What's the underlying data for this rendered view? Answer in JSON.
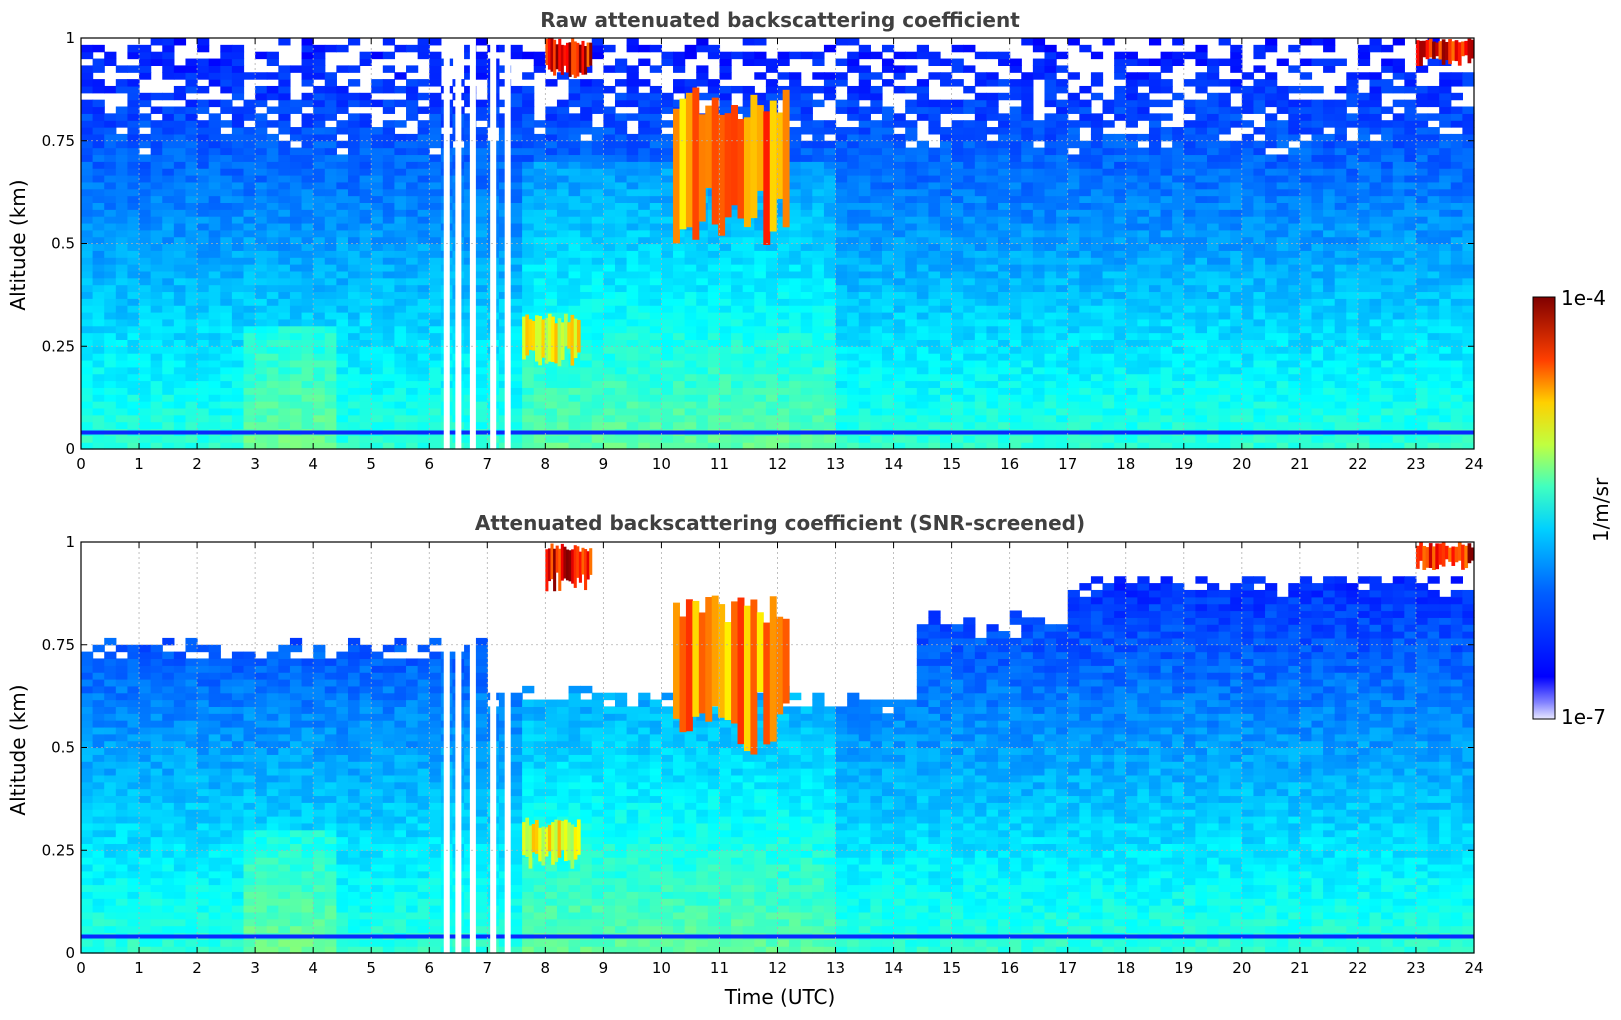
{
  "chart_data": [
    {
      "type": "heatmap",
      "title": "Raw attenuated backscattering coefficient",
      "xlabel": "",
      "ylabel": "Altitude (km)",
      "xlim": [
        0,
        24
      ],
      "ylim": [
        0,
        1
      ],
      "x_ticks": [
        "0",
        "1",
        "2",
        "3",
        "4",
        "5",
        "6",
        "7",
        "8",
        "9",
        "10",
        "11",
        "12",
        "13",
        "14",
        "15",
        "16",
        "17",
        "18",
        "19",
        "20",
        "21",
        "22",
        "23",
        "24"
      ],
      "y_ticks": [
        "0",
        "0.25",
        "0.5",
        "0.75",
        "1"
      ],
      "grid": true,
      "snr_screened": false,
      "clouds": [
        {
          "t0": 8.0,
          "t1": 8.8,
          "z0": 0.9,
          "z1": 1.0,
          "level": 1.0
        },
        {
          "t0": 10.2,
          "t1": 12.2,
          "z0": 0.48,
          "z1": 0.88,
          "level": 0.85
        },
        {
          "t0": 7.6,
          "t1": 8.6,
          "z0": 0.2,
          "z1": 0.33,
          "level": 0.7
        },
        {
          "t0": 23.0,
          "t1": 24.0,
          "z0": 0.93,
          "z1": 1.0,
          "level": 1.0
        }
      ],
      "missing_hours": [
        6.25,
        6.45,
        6.7,
        7.05,
        7.3
      ]
    },
    {
      "type": "heatmap",
      "title": "Attenuated backscattering coefficient (SNR-screened)",
      "xlabel": "Time (UTC)",
      "ylabel": "Altitude (km)",
      "xlim": [
        0,
        24
      ],
      "ylim": [
        0,
        1
      ],
      "x_ticks": [
        "0",
        "1",
        "2",
        "3",
        "4",
        "5",
        "6",
        "7",
        "8",
        "9",
        "10",
        "11",
        "12",
        "13",
        "14",
        "15",
        "16",
        "17",
        "18",
        "19",
        "20",
        "21",
        "22",
        "23",
        "24"
      ],
      "y_ticks": [
        "0",
        "0.25",
        "0.5",
        "0.75",
        "1"
      ],
      "grid": true,
      "snr_screened": true,
      "clouds": [
        {
          "t0": 8.0,
          "t1": 8.8,
          "z0": 0.88,
          "z1": 1.0,
          "level": 1.0
        },
        {
          "t0": 10.2,
          "t1": 12.2,
          "z0": 0.48,
          "z1": 0.88,
          "level": 0.85
        },
        {
          "t0": 7.6,
          "t1": 8.6,
          "z0": 0.2,
          "z1": 0.33,
          "level": 0.7
        },
        {
          "t0": 23.0,
          "t1": 24.0,
          "z0": 0.93,
          "z1": 1.0,
          "level": 1.0
        }
      ],
      "missing_hours": [
        6.25,
        6.45,
        6.7,
        7.05,
        7.3
      ]
    }
  ],
  "colorbar": {
    "label": "1/m/sr",
    "min_label": "1e-7",
    "max_label": "1e-4",
    "colormap": "jet"
  }
}
